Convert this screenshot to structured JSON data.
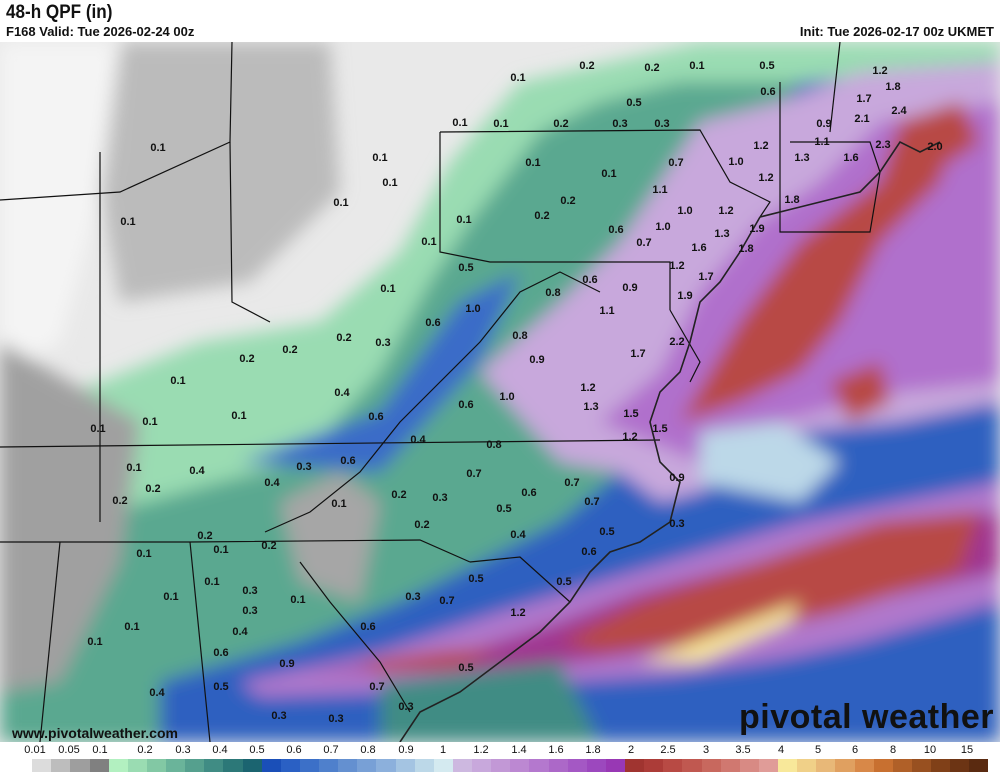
{
  "header": {
    "title": "48-h QPF (in)",
    "valid": "F168 Valid: Tue 2026-02-24 00z",
    "init": "Init: Tue 2026-02-17 00z UKMET"
  },
  "watermark": {
    "url": "www.pivotalweather.com",
    "logo": "pivotal weather"
  },
  "colorbar": {
    "units": "in",
    "tick_labels": [
      "0.01",
      "0.05",
      "0.1",
      "0.2",
      "0.3",
      "0.4",
      "0.5",
      "0.6",
      "0.7",
      "0.8",
      "0.9",
      "1",
      "1.2",
      "1.4",
      "1.6",
      "1.8",
      "2",
      "2.5",
      "3",
      "3.5",
      "4",
      "5",
      "6",
      "8",
      "10",
      "15"
    ],
    "colors": [
      "#ffffff",
      "#dcdcdc",
      "#bdbdbd",
      "#9e9e9e",
      "#808080",
      "#b2f0c0",
      "#9adcb2",
      "#82c8a4",
      "#6ab49a",
      "#55a08e",
      "#408c84",
      "#2c7878",
      "#1b6470",
      "#1a4fb8",
      "#2a60c4",
      "#3c70c8",
      "#4f80cc",
      "#6490d0",
      "#78a0d6",
      "#8cb0dc",
      "#a4c4e2",
      "#bcd8e8",
      "#d4eaf0",
      "#cdb8e0",
      "#c8a8dc",
      "#c298d6",
      "#bc88d2",
      "#b478ce",
      "#ac68c8",
      "#a458c4",
      "#9c48be",
      "#9838b4",
      "#a03430",
      "#ac3c38",
      "#b84a44",
      "#c05850",
      "#c8685e",
      "#d07870",
      "#d88a84",
      "#e09c98",
      "#f8e89a",
      "#f0d088",
      "#e8b878",
      "#e0a060",
      "#d88848",
      "#c87030",
      "#b06028",
      "#985020",
      "#804018",
      "#6c3414",
      "#5a2a10"
    ]
  },
  "map": {
    "point_labels": [
      "0.1",
      "0.2",
      "0.2",
      "0.1",
      "0.5",
      "0.6",
      "1.2",
      "1.7",
      "1.8",
      "2.1",
      "2.4",
      "0.5",
      "0.1",
      "0.1",
      "0.2",
      "0.3",
      "0.3",
      "0.9",
      "2.3",
      "2.0",
      "1.1",
      "1.6",
      "1.3",
      "1.2",
      "0.1",
      "0.1",
      "0.7",
      "1.0",
      "0.1",
      "0.1",
      "0.1",
      "0.2",
      "1.1",
      "1.2",
      "1.8",
      "0.1",
      "0.1",
      "0.1",
      "0.2",
      "1.0",
      "1.2",
      "0.6",
      "1.0",
      "1.3",
      "1.9",
      "0.7",
      "1.6",
      "1.8",
      "0.1",
      "0.5",
      "1.2",
      "1.7",
      "0.6",
      "0.9",
      "1.9",
      "0.8",
      "0.1",
      "1.0",
      "1.1",
      "0.6",
      "0.8",
      "2.2",
      "0.2",
      "0.3",
      "0.2",
      "0.2",
      "1.7",
      "0.9",
      "0.1",
      "0.4",
      "1.2",
      "1.0",
      "0.6",
      "1.3",
      "0.1",
      "0.6",
      "1.5",
      "0.1",
      "0.1",
      "1.5",
      "0.4",
      "1.2",
      "0.8",
      "0.6",
      "0.3",
      "0.7",
      "0.1",
      "0.4",
      "0.9",
      "0.7",
      "0.2",
      "0.6",
      "0.2",
      "0.3",
      "0.2",
      "0.1",
      "0.7",
      "0.4",
      "0.5",
      "0.3",
      "0.2",
      "0.5",
      "0.4",
      "0.2",
      "0.2",
      "0.1",
      "0.1",
      "0.6",
      "0.5",
      "0.5",
      "0.1",
      "0.3",
      "0.7",
      "0.3",
      "0.1",
      "0.1",
      "0.3",
      "1.2",
      "0.6",
      "0.4",
      "0.1",
      "0.1",
      "0.6",
      "0.5",
      "0.9",
      "0.7",
      "0.5",
      "0.4",
      "0.3",
      "0.3",
      "0.3"
    ]
  }
}
